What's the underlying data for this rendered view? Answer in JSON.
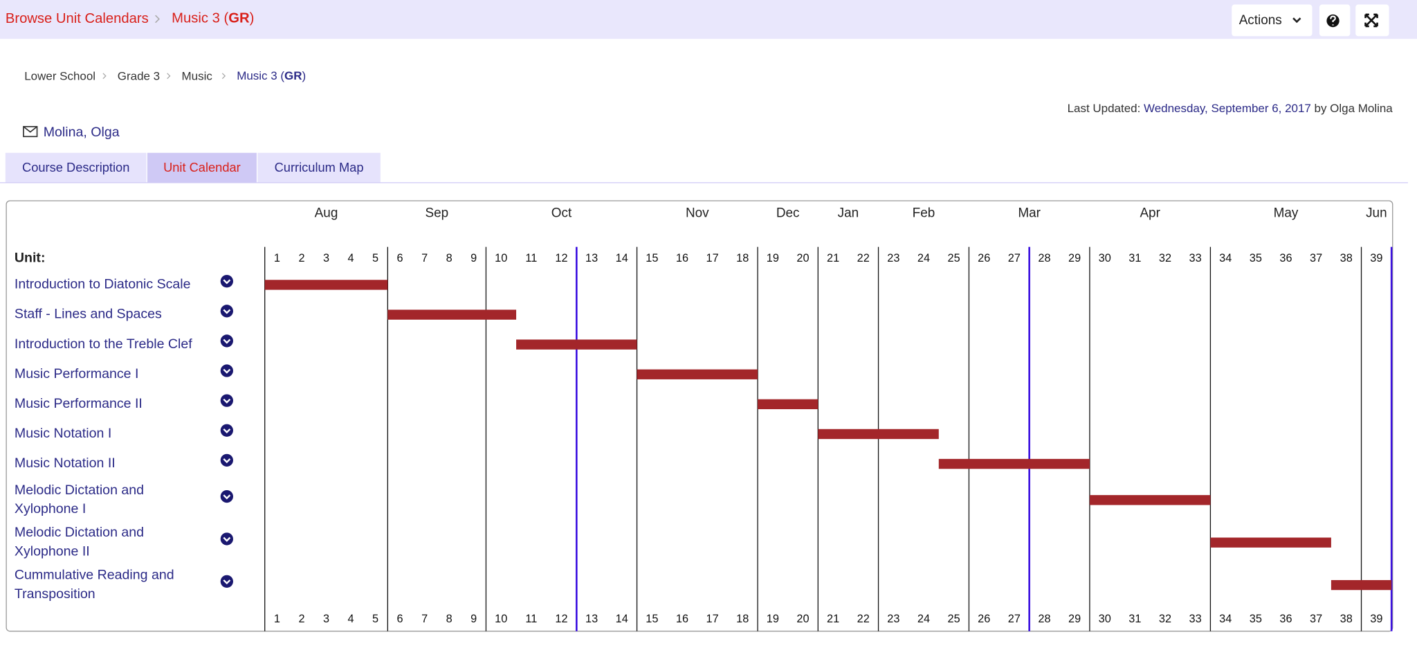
{
  "topbar": {
    "breadcrumb": "Browse Unit Calendars",
    "current": [
      "Music 3 (",
      "GR",
      ")"
    ],
    "actions": "Actions"
  },
  "path": {
    "items": [
      "Lower School",
      "Grade 3",
      "Music"
    ],
    "current": [
      "Music 3 (",
      "GR",
      ")"
    ]
  },
  "last_updated": {
    "label": "Last Updated:",
    "date": "Wednesday, September 6, 2017",
    "by": "by Olga Molina"
  },
  "teacher": "Molina, Olga",
  "tabs": {
    "items": [
      "Course Description",
      "Unit Calendar",
      "Curriculum Map"
    ],
    "active": 1
  },
  "calendar": {
    "unit_header": "Unit:",
    "months": [
      {
        "name": "Aug",
        "start": 1,
        "end": 5
      },
      {
        "name": "Sep",
        "start": 6,
        "end": 9
      },
      {
        "name": "Oct",
        "start": 10,
        "end": 14
      },
      {
        "name": "Nov",
        "start": 15,
        "end": 18
      },
      {
        "name": "Dec",
        "start": 19,
        "end": 20
      },
      {
        "name": "Jan",
        "start": 21,
        "end": 22
      },
      {
        "name": "Feb",
        "start": 23,
        "end": 25
      },
      {
        "name": "Mar",
        "start": 26,
        "end": 29
      },
      {
        "name": "Apr",
        "start": 30,
        "end": 33
      },
      {
        "name": "May",
        "start": 34,
        "end": 38
      },
      {
        "name": "Jun",
        "start": 39,
        "end": 39
      }
    ],
    "weeks": [
      1,
      2,
      3,
      4,
      5,
      6,
      7,
      8,
      9,
      10,
      11,
      12,
      13,
      14,
      15,
      16,
      17,
      18,
      19,
      20,
      21,
      22,
      23,
      24,
      25,
      26,
      27,
      28,
      29,
      30,
      31,
      32,
      33,
      34,
      35,
      36,
      37,
      38,
      39
    ],
    "term_ends": [
      12,
      27,
      39
    ],
    "bar_color": "#a3262a",
    "units": [
      {
        "lines": [
          "Introduction to Diatonic Scale"
        ],
        "start": 1,
        "end": 5
      },
      {
        "lines": [
          "Staff - Lines and Spaces"
        ],
        "start": 6,
        "end": 10
      },
      {
        "lines": [
          "Introduction to the Treble Clef"
        ],
        "start": 11,
        "end": 14
      },
      {
        "lines": [
          "Music Performance I"
        ],
        "start": 15,
        "end": 18
      },
      {
        "lines": [
          "Music Performance II"
        ],
        "start": 19,
        "end": 20
      },
      {
        "lines": [
          "Music Notation I"
        ],
        "start": 21,
        "end": 24
      },
      {
        "lines": [
          "Music Notation II"
        ],
        "start": 25,
        "end": 29
      },
      {
        "lines": [
          "Melodic Dictation and",
          "Xylophone I"
        ],
        "start": 30,
        "end": 33
      },
      {
        "lines": [
          "Melodic Dictation and",
          "Xylophone II"
        ],
        "start": 34,
        "end": 37
      },
      {
        "lines": [
          "Cummulative Reading and",
          "Transposition"
        ],
        "start": 38,
        "end": 39
      }
    ]
  }
}
